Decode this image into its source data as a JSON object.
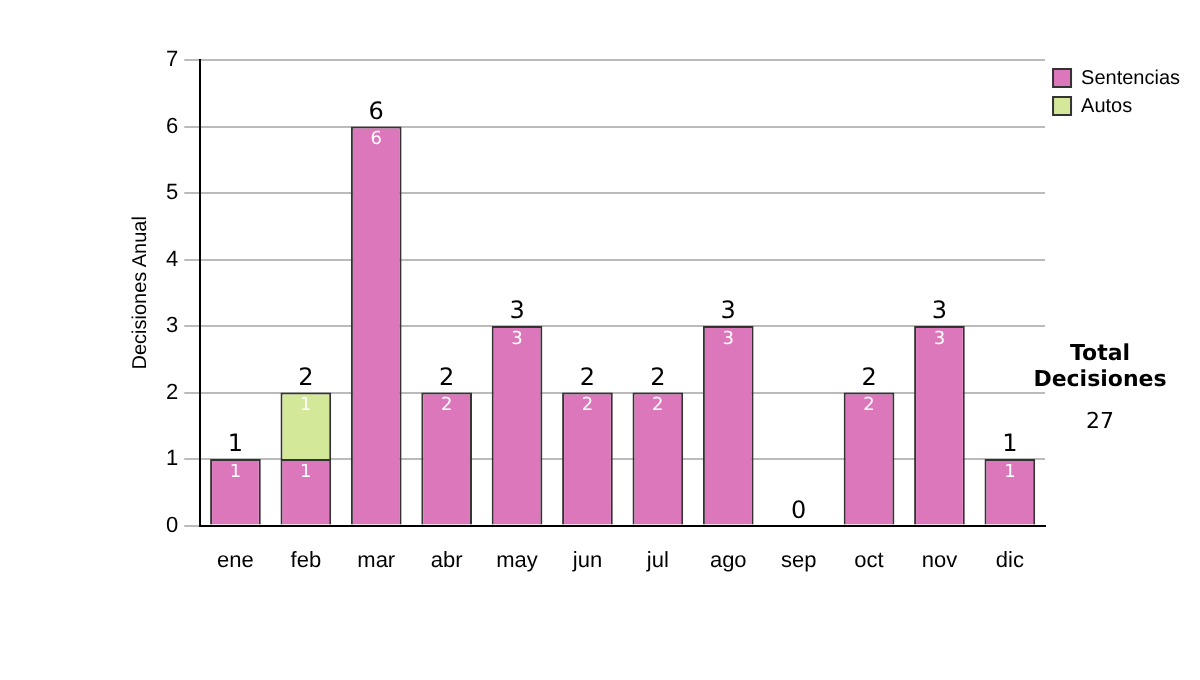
{
  "chart_data": {
    "type": "bar",
    "stacked": true,
    "ylabel": "Decisiones Anual",
    "categories": [
      "ene",
      "feb",
      "mar",
      "abr",
      "may",
      "jun",
      "jul",
      "ago",
      "sep",
      "oct",
      "nov",
      "dic"
    ],
    "series": [
      {
        "name": "Sentencias",
        "color": "#dd77bb",
        "values": [
          1,
          1,
          6,
          2,
          3,
          2,
          2,
          3,
          0,
          2,
          3,
          1
        ],
        "value_labels": [
          "1",
          "1",
          "6",
          "2",
          "3",
          "2",
          "2",
          "3",
          null,
          "2",
          "3",
          "1"
        ]
      },
      {
        "name": "Autos",
        "color": "#d4e89a",
        "values": [
          0,
          1,
          0,
          0,
          0,
          0,
          0,
          0,
          0,
          0,
          0,
          0
        ],
        "value_labels": [
          null,
          "1",
          null,
          null,
          null,
          null,
          null,
          null,
          null,
          null,
          null,
          null
        ]
      }
    ],
    "totals": [
      "1",
      "2",
      "6",
      "2",
      "3",
      "2",
      "2",
      "3",
      "0",
      "2",
      "3",
      "1"
    ],
    "ylim": [
      0,
      7
    ],
    "yticks": [
      0,
      1,
      2,
      3,
      4,
      5,
      6,
      7
    ],
    "grid": "y",
    "legend": "right",
    "annotations": [
      "Total Decisiones",
      "27"
    ]
  }
}
